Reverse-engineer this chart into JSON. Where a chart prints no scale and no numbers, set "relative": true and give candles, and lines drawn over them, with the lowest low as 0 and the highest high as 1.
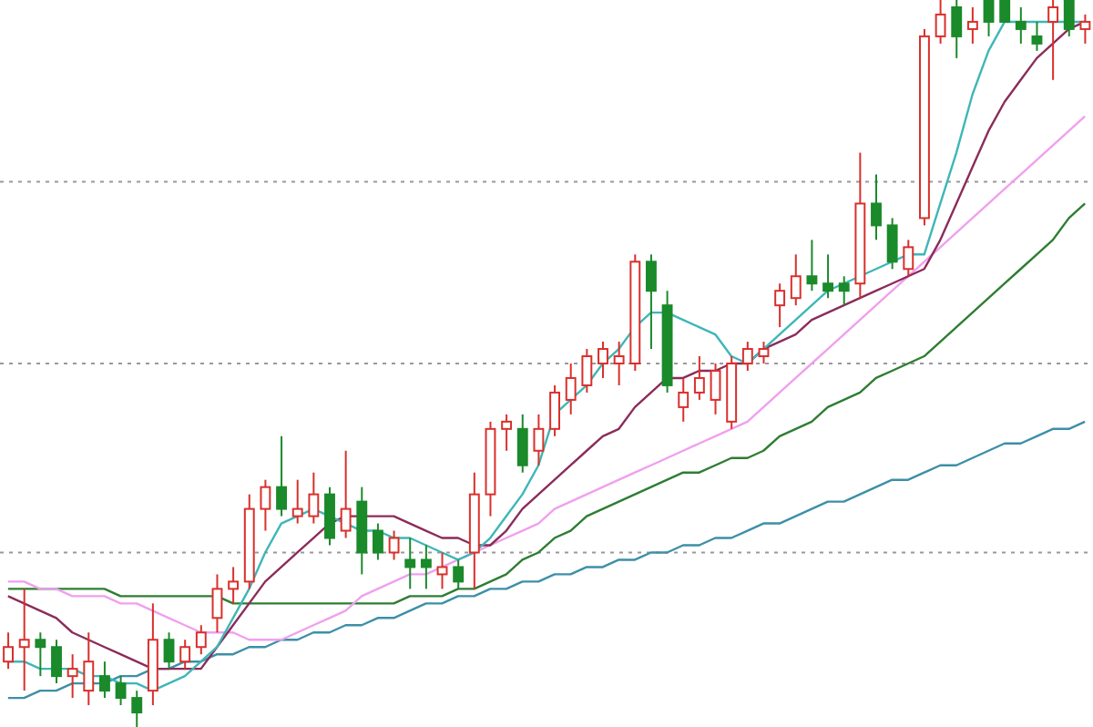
{
  "chart_data": {
    "type": "candlestick",
    "relative": true,
    "categories": [
      null,
      null,
      null,
      null,
      null,
      null,
      null,
      null,
      null,
      null,
      null,
      null,
      null,
      null,
      null,
      null,
      null,
      null,
      null,
      null,
      null,
      null,
      null,
      null,
      null,
      null,
      null,
      null,
      null,
      null,
      null,
      null,
      null,
      null,
      null,
      null,
      null,
      null,
      null,
      null,
      null,
      null,
      null,
      null,
      null,
      null,
      null,
      null,
      null,
      null,
      null,
      null,
      null,
      null,
      null,
      null,
      null,
      null,
      null,
      null,
      null,
      null,
      null,
      null,
      null,
      null,
      null,
      null
    ],
    "ohlc": [
      [
        0.09,
        0.13,
        0.08,
        0.11
      ],
      [
        0.11,
        0.19,
        0.05,
        0.12
      ],
      [
        0.12,
        0.13,
        0.07,
        0.11
      ],
      [
        0.11,
        0.12,
        0.06,
        0.07
      ],
      [
        0.07,
        0.1,
        0.04,
        0.08
      ],
      [
        0.05,
        0.13,
        0.03,
        0.09
      ],
      [
        0.07,
        0.09,
        0.04,
        0.05
      ],
      [
        0.06,
        0.07,
        0.03,
        0.04
      ],
      [
        0.04,
        0.05,
        0,
        0.02
      ],
      [
        0.05,
        0.17,
        0.03,
        0.12
      ],
      [
        0.12,
        0.13,
        0.08,
        0.09
      ],
      [
        0.09,
        0.12,
        0.08,
        0.11
      ],
      [
        0.11,
        0.14,
        0.1,
        0.13
      ],
      [
        0.15,
        0.21,
        0.13,
        0.19
      ],
      [
        0.19,
        0.22,
        0.17,
        0.2
      ],
      [
        0.2,
        0.32,
        0.19,
        0.3
      ],
      [
        0.3,
        0.34,
        0.27,
        0.33
      ],
      [
        0.33,
        0.4,
        0.29,
        0.3
      ],
      [
        0.29,
        0.34,
        0.28,
        0.3
      ],
      [
        0.29,
        0.35,
        0.28,
        0.32
      ],
      [
        0.32,
        0.33,
        0.25,
        0.26
      ],
      [
        0.27,
        0.38,
        0.26,
        0.3
      ],
      [
        0.31,
        0.33,
        0.21,
        0.24
      ],
      [
        0.27,
        0.28,
        0.23,
        0.24
      ],
      [
        0.24,
        0.27,
        0.23,
        0.26
      ],
      [
        0.23,
        0.26,
        0.19,
        0.22
      ],
      [
        0.23,
        0.25,
        0.19,
        0.22
      ],
      [
        0.21,
        0.24,
        0.19,
        0.22
      ],
      [
        0.22,
        0.23,
        0.19,
        0.2
      ],
      [
        0.24,
        0.35,
        0.19,
        0.32
      ],
      [
        0.32,
        0.42,
        0.29,
        0.41
      ],
      [
        0.41,
        0.43,
        0.38,
        0.42
      ],
      [
        0.41,
        0.43,
        0.35,
        0.36
      ],
      [
        0.38,
        0.43,
        0.36,
        0.41
      ],
      [
        0.41,
        0.47,
        0.4,
        0.46
      ],
      [
        0.45,
        0.5,
        0.43,
        0.48
      ],
      [
        0.47,
        0.52,
        0.46,
        0.51
      ],
      [
        0.5,
        0.53,
        0.48,
        0.52
      ],
      [
        0.5,
        0.53,
        0.47,
        0.51
      ],
      [
        0.5,
        0.65,
        0.49,
        0.64
      ],
      [
        0.64,
        0.65,
        0.52,
        0.6
      ],
      [
        0.58,
        0.6,
        0.46,
        0.47
      ],
      [
        0.44,
        0.48,
        0.42,
        0.46
      ],
      [
        0.46,
        0.51,
        0.45,
        0.48
      ],
      [
        0.45,
        0.5,
        0.43,
        0.49
      ],
      [
        0.42,
        0.51,
        0.41,
        0.5
      ],
      [
        0.5,
        0.53,
        0.49,
        0.52
      ],
      [
        0.51,
        0.53,
        0.5,
        0.52
      ],
      [
        0.58,
        0.61,
        0.55,
        0.6
      ],
      [
        0.59,
        0.65,
        0.58,
        0.62
      ],
      [
        0.62,
        0.67,
        0.6,
        0.61
      ],
      [
        0.61,
        0.65,
        0.59,
        0.6
      ],
      [
        0.61,
        0.62,
        0.58,
        0.6
      ],
      [
        0.61,
        0.79,
        0.59,
        0.72
      ],
      [
        0.72,
        0.76,
        0.67,
        0.69
      ],
      [
        0.69,
        0.7,
        0.63,
        0.64
      ],
      [
        0.63,
        0.67,
        0.62,
        0.66
      ],
      [
        0.7,
        0.96,
        0.69,
        0.95
      ],
      [
        0.95,
        1,
        0.94,
        0.98
      ],
      [
        0.99,
        1,
        0.92,
        0.95
      ],
      [
        0.96,
        0.99,
        0.94,
        0.97
      ],
      [
        1,
        1,
        0.95,
        0.97
      ],
      [
        1,
        1,
        0.97,
        0.97
      ],
      [
        0.97,
        0.99,
        0.94,
        0.96
      ],
      [
        0.95,
        0.97,
        0.93,
        0.94
      ],
      [
        0.97,
        1,
        0.89,
        0.99
      ],
      [
        1,
        1,
        0.95,
        0.96
      ],
      [
        0.96,
        0.98,
        0.94,
        0.97
      ]
    ],
    "series": [
      {
        "type": "line",
        "color": "#3d8fa8",
        "values": [
          0.04,
          0.04,
          0.05,
          0.05,
          0.06,
          0.06,
          0.06,
          0.07,
          0.07,
          0.08,
          0.08,
          0.09,
          0.09,
          0.1,
          0.1,
          0.11,
          0.11,
          0.12,
          0.12,
          0.13,
          0.13,
          0.14,
          0.14,
          0.15,
          0.15,
          0.16,
          0.17,
          0.17,
          0.18,
          0.18,
          0.19,
          0.19,
          0.2,
          0.2,
          0.21,
          0.21,
          0.22,
          0.22,
          0.23,
          0.23,
          0.24,
          0.24,
          0.25,
          0.25,
          0.26,
          0.26,
          0.27,
          0.28,
          0.28,
          0.29,
          0.3,
          0.31,
          0.31,
          0.32,
          0.33,
          0.34,
          0.34,
          0.35,
          0.36,
          0.36,
          0.37,
          0.38,
          0.39,
          0.39,
          0.4,
          0.41,
          0.41,
          0.42
        ]
      },
      {
        "type": "line",
        "color": "#2e7d32",
        "values": [
          0.19,
          0.19,
          0.19,
          0.19,
          0.19,
          0.19,
          0.19,
          0.18,
          0.18,
          0.18,
          0.18,
          0.18,
          0.18,
          0.18,
          0.17,
          0.17,
          0.17,
          0.17,
          0.17,
          0.17,
          0.17,
          0.17,
          0.17,
          0.17,
          0.17,
          0.18,
          0.18,
          0.18,
          0.19,
          0.19,
          0.2,
          0.21,
          0.23,
          0.24,
          0.26,
          0.27,
          0.29,
          0.3,
          0.31,
          0.32,
          0.33,
          0.34,
          0.35,
          0.35,
          0.36,
          0.37,
          0.37,
          0.38,
          0.4,
          0.41,
          0.42,
          0.44,
          0.45,
          0.46,
          0.48,
          0.49,
          0.5,
          0.51,
          0.53,
          0.55,
          0.57,
          0.59,
          0.61,
          0.63,
          0.65,
          0.67,
          0.7,
          0.72
        ]
      },
      {
        "type": "line",
        "color": "#f0a0ee",
        "values": [
          0.2,
          0.2,
          0.19,
          0.19,
          0.18,
          0.18,
          0.18,
          0.17,
          0.17,
          0.16,
          0.15,
          0.14,
          0.13,
          0.13,
          0.13,
          0.12,
          0.12,
          0.12,
          0.13,
          0.14,
          0.15,
          0.16,
          0.18,
          0.19,
          0.2,
          0.21,
          0.21,
          0.22,
          0.23,
          0.24,
          0.25,
          0.26,
          0.27,
          0.28,
          0.3,
          0.31,
          0.32,
          0.33,
          0.34,
          0.35,
          0.36,
          0.37,
          0.38,
          0.39,
          0.4,
          0.41,
          0.42,
          0.44,
          0.46,
          0.48,
          0.5,
          0.52,
          0.54,
          0.56,
          0.58,
          0.6,
          0.62,
          0.64,
          0.66,
          0.68,
          0.7,
          0.72,
          0.74,
          0.76,
          0.78,
          0.8,
          0.82,
          0.84
        ]
      },
      {
        "type": "line",
        "color": "#8b2c5a",
        "values": [
          0.18,
          0.17,
          0.16,
          0.15,
          0.13,
          0.12,
          0.11,
          0.1,
          0.09,
          0.08,
          0.08,
          0.08,
          0.08,
          0.11,
          0.14,
          0.17,
          0.2,
          0.22,
          0.24,
          0.26,
          0.28,
          0.29,
          0.29,
          0.29,
          0.29,
          0.28,
          0.27,
          0.26,
          0.26,
          0.25,
          0.25,
          0.27,
          0.3,
          0.32,
          0.34,
          0.36,
          0.38,
          0.4,
          0.41,
          0.44,
          0.46,
          0.48,
          0.48,
          0.49,
          0.49,
          0.5,
          0.5,
          0.52,
          0.53,
          0.54,
          0.56,
          0.57,
          0.58,
          0.59,
          0.6,
          0.61,
          0.62,
          0.63,
          0.67,
          0.72,
          0.77,
          0.82,
          0.86,
          0.89,
          0.92,
          0.94,
          0.96,
          0.97
        ]
      },
      {
        "type": "line",
        "color": "#3fb6b8",
        "values": [
          0.09,
          0.09,
          0.08,
          0.08,
          0.08,
          0.07,
          0.07,
          0.06,
          0.06,
          0.05,
          0.06,
          0.07,
          0.09,
          0.11,
          0.15,
          0.19,
          0.24,
          0.28,
          0.29,
          0.3,
          0.29,
          0.28,
          0.27,
          0.27,
          0.26,
          0.26,
          0.25,
          0.24,
          0.23,
          0.24,
          0.26,
          0.29,
          0.32,
          0.36,
          0.43,
          0.45,
          0.47,
          0.5,
          0.52,
          0.55,
          0.57,
          0.57,
          0.56,
          0.55,
          0.54,
          0.51,
          0.5,
          0.52,
          0.54,
          0.56,
          0.58,
          0.6,
          0.61,
          0.62,
          0.63,
          0.64,
          0.65,
          0.65,
          0.72,
          0.79,
          0.87,
          0.93,
          0.97,
          0.97,
          0.97,
          0.97,
          0.97,
          0.97
        ]
      }
    ],
    "ref_lines": [
      {
        "axis": "y",
        "value": 0.75,
        "color": "#999999",
        "line_style": "dotted"
      },
      {
        "axis": "y",
        "value": 0.5,
        "color": "#999999",
        "line_style": "dotted"
      },
      {
        "axis": "y",
        "value": 0.24,
        "color": "#999999",
        "line_style": "dotted"
      }
    ]
  }
}
